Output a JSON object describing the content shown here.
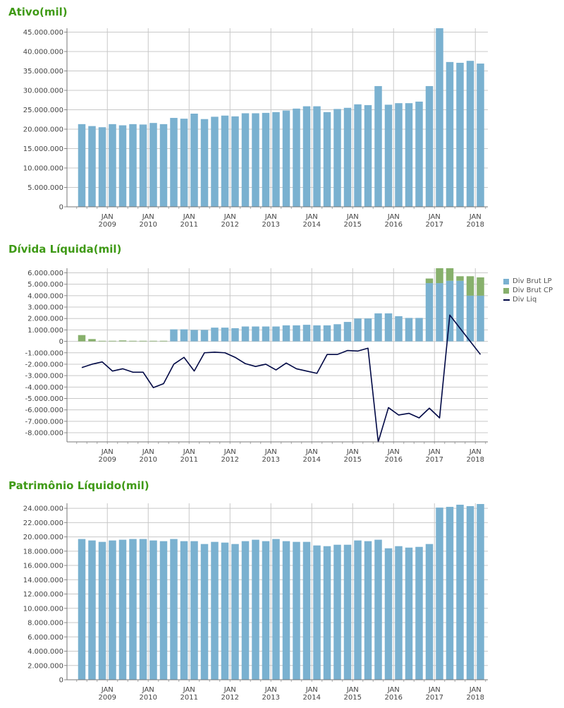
{
  "colors": {
    "bar_lp": "#7ab1d0",
    "bar_cp": "#87b06c",
    "line": "#000845",
    "grid": "#c8c8c8",
    "title": "#3f9a16"
  },
  "chart_data": [
    {
      "type": "bar",
      "title": "Ativo(mil)",
      "x_tick_labels": [
        {
          "top": "JAN",
          "bottom": "2009"
        },
        {
          "top": "JAN",
          "bottom": "2010"
        },
        {
          "top": "JAN",
          "bottom": "2011"
        },
        {
          "top": "JAN",
          "bottom": "2012"
        },
        {
          "top": "JAN",
          "bottom": "2013"
        },
        {
          "top": "JAN",
          "bottom": "2014"
        },
        {
          "top": "JAN",
          "bottom": "2015"
        },
        {
          "top": "JAN",
          "bottom": "2016"
        },
        {
          "top": "JAN",
          "bottom": "2017"
        },
        {
          "top": "JAN",
          "bottom": "2018"
        }
      ],
      "y_tick_labels": [
        "0",
        "5.000.000",
        "10.000.000",
        "15.000.000",
        "20.000.000",
        "25.000.000",
        "30.000.000",
        "35.000.000",
        "40.000.000",
        "45.000.000"
      ],
      "y_ticks": [
        0,
        5000000,
        10000000,
        15000000,
        20000000,
        25000000,
        30000000,
        35000000,
        40000000,
        45000000
      ],
      "ylim": [
        0,
        46000000
      ],
      "grid": true,
      "series": [
        {
          "values": [
            21300000,
            20800000,
            20500000,
            21300000,
            21000000,
            21300000,
            21200000,
            21600000,
            21300000,
            22900000,
            22700000,
            24000000,
            22600000,
            23200000,
            23500000,
            23300000,
            24100000,
            24100000,
            24200000,
            24400000,
            24800000,
            25300000,
            25900000,
            25900000,
            24400000,
            25200000,
            25500000,
            26400000,
            26200000,
            31100000,
            26300000,
            26700000,
            26700000,
            27100000,
            31100000,
            46000000,
            37300000,
            37100000,
            37600000,
            36900000
          ]
        }
      ]
    },
    {
      "type": "bar+line",
      "title": "Dívida Líquida(mil)",
      "x_tick_labels": [
        {
          "top": "JAN",
          "bottom": "2009"
        },
        {
          "top": "JAN",
          "bottom": "2010"
        },
        {
          "top": "JAN",
          "bottom": "2011"
        },
        {
          "top": "JAN",
          "bottom": "2012"
        },
        {
          "top": "JAN",
          "bottom": "2013"
        },
        {
          "top": "JAN",
          "bottom": "2014"
        },
        {
          "top": "JAN",
          "bottom": "2015"
        },
        {
          "top": "JAN",
          "bottom": "2016"
        },
        {
          "top": "JAN",
          "bottom": "2017"
        },
        {
          "top": "JAN",
          "bottom": "2018"
        }
      ],
      "y_tick_labels": [
        "-8.000.000",
        "-7.000.000",
        "-6.000.000",
        "-5.000.000",
        "-4.000.000",
        "-3.000.000",
        "-2.000.000",
        "-1.000.000",
        "0",
        "1.000.000",
        "2.000.000",
        "3.000.000",
        "4.000.000",
        "5.000.000",
        "6.000.000"
      ],
      "y_ticks": [
        -8000000,
        -7000000,
        -6000000,
        -5000000,
        -4000000,
        -3000000,
        -2000000,
        -1000000,
        0,
        1000000,
        2000000,
        3000000,
        4000000,
        5000000,
        6000000
      ],
      "ylim": [
        -8800000,
        6400000
      ],
      "grid": true,
      "legend": {
        "placement": "right",
        "entries": [
          "Div Brut LP",
          "Div Brut CP",
          "Div Liq"
        ]
      },
      "series": [
        {
          "name": "Div Brut LP",
          "kind": "bar",
          "stack": "divida",
          "values": [
            0,
            0,
            0,
            0,
            0,
            0,
            0,
            0,
            0,
            1050000,
            1050000,
            1000000,
            1000000,
            1200000,
            1200000,
            1150000,
            1300000,
            1300000,
            1300000,
            1300000,
            1400000,
            1400000,
            1450000,
            1400000,
            1400000,
            1500000,
            1700000,
            2000000,
            2000000,
            2450000,
            2450000,
            2200000,
            2050000,
            2050000,
            5100000,
            5100000,
            5300000,
            5300000,
            4000000,
            4000000
          ]
        },
        {
          "name": "Div Brut CP",
          "kind": "bar",
          "stack": "divida",
          "values": [
            550000,
            200000,
            50000,
            50000,
            80000,
            50000,
            50000,
            50000,
            50000,
            0,
            0,
            0,
            0,
            0,
            0,
            0,
            0,
            0,
            0,
            0,
            0,
            0,
            0,
            0,
            0,
            0,
            0,
            0,
            0,
            0,
            0,
            0,
            0,
            0,
            400000,
            1300000,
            1100000,
            400000,
            1700000,
            1600000
          ]
        },
        {
          "name": "Div Liq",
          "kind": "line",
          "values": [
            -2300000,
            -2000000,
            -1800000,
            -2600000,
            -2400000,
            -2700000,
            -2700000,
            -4050000,
            -3700000,
            -2000000,
            -1400000,
            -2600000,
            -1000000,
            -950000,
            -1000000,
            -1400000,
            -1950000,
            -2200000,
            -2000000,
            -2500000,
            -1900000,
            -2400000,
            -2600000,
            -2800000,
            -1150000,
            -1150000,
            -800000,
            -850000,
            -600000,
            -8800000,
            -5800000,
            -6450000,
            -6300000,
            -6700000,
            -5850000,
            -6700000,
            2300000,
            1150000,
            0,
            -1150000
          ]
        }
      ]
    },
    {
      "type": "bar",
      "title": "Patrimônio Líquido(mil)",
      "x_tick_labels": [
        {
          "top": "JAN",
          "bottom": "2009"
        },
        {
          "top": "JAN",
          "bottom": "2010"
        },
        {
          "top": "JAN",
          "bottom": "2011"
        },
        {
          "top": "JAN",
          "bottom": "2012"
        },
        {
          "top": "JAN",
          "bottom": "2013"
        },
        {
          "top": "JAN",
          "bottom": "2014"
        },
        {
          "top": "JAN",
          "bottom": "2015"
        },
        {
          "top": "JAN",
          "bottom": "2016"
        },
        {
          "top": "JAN",
          "bottom": "2017"
        },
        {
          "top": "JAN",
          "bottom": "2018"
        }
      ],
      "y_tick_labels": [
        "0",
        "2.000.000",
        "4.000.000",
        "6.000.000",
        "8.000.000",
        "10.000.000",
        "12.000.000",
        "14.000.000",
        "16.000.000",
        "18.000.000",
        "20.000.000",
        "22.000.000",
        "24.000.000"
      ],
      "y_ticks": [
        0,
        2000000,
        4000000,
        6000000,
        8000000,
        10000000,
        12000000,
        14000000,
        16000000,
        18000000,
        20000000,
        22000000,
        24000000
      ],
      "ylim": [
        0,
        24700000
      ],
      "grid": true,
      "series": [
        {
          "values": [
            19700000,
            19500000,
            19300000,
            19500000,
            19600000,
            19700000,
            19700000,
            19500000,
            19400000,
            19700000,
            19400000,
            19400000,
            19000000,
            19300000,
            19200000,
            19000000,
            19400000,
            19600000,
            19400000,
            19700000,
            19400000,
            19300000,
            19300000,
            18800000,
            18700000,
            18900000,
            18900000,
            19500000,
            19400000,
            19600000,
            18400000,
            18700000,
            18500000,
            18600000,
            19000000,
            24100000,
            24200000,
            24500000,
            24300000,
            24600000
          ]
        }
      ]
    }
  ]
}
